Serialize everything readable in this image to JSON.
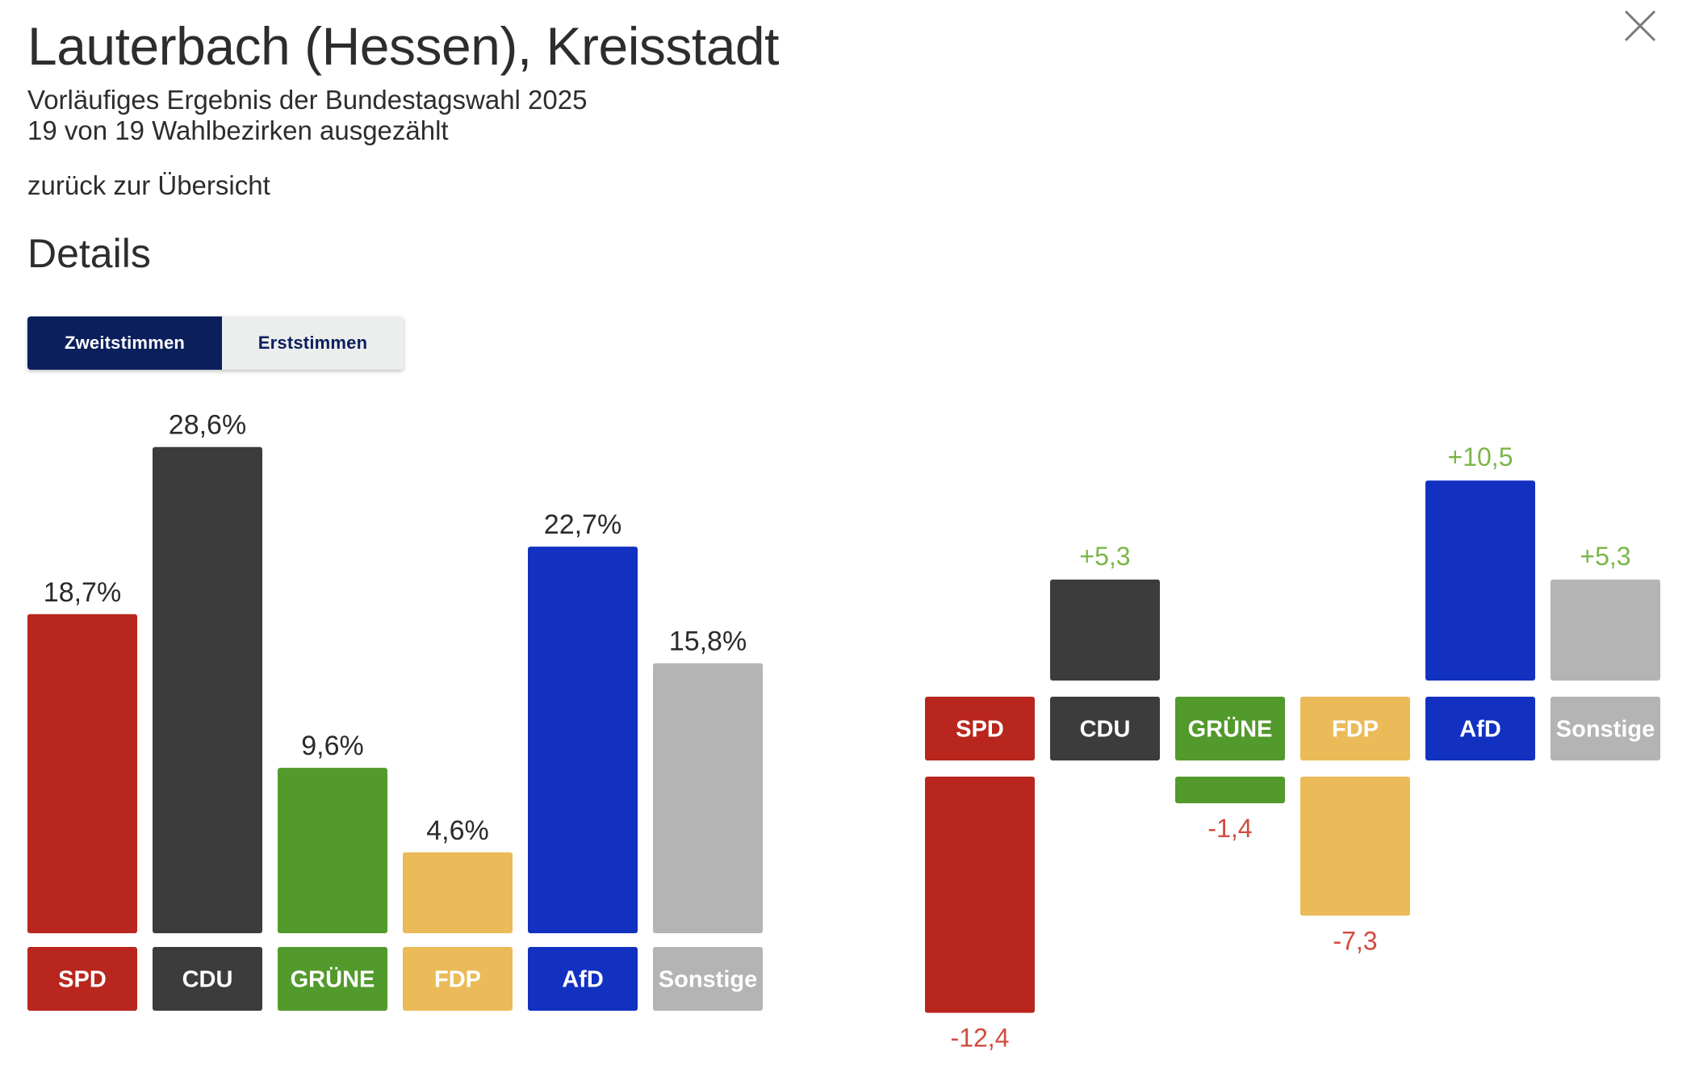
{
  "header": {
    "title": "Lauterbach (Hessen), Kreisstadt",
    "subtitle": "Vorläufiges Ergebnis der Bundestagswahl 2025",
    "counted": "19 von 19 Wahlbezirken ausgezählt",
    "back_link": "zurück zur Übersicht",
    "close_icon": "close-icon"
  },
  "details": {
    "heading": "Details",
    "tabs": [
      {
        "label": "Zweitstimmen",
        "active": true
      },
      {
        "label": "Erststimmen",
        "active": false
      }
    ]
  },
  "colors": {
    "SPD": "#b8261e",
    "CDU": "#3c3c3c",
    "GRÜNE": "#529a2b",
    "FDP": "#eabb58",
    "AfD": "#1231c1",
    "Sonstige": "#b4b4b4",
    "gain": "#7ab648",
    "loss": "#d14b3f",
    "text": "#2b2b2b"
  },
  "chart_data": [
    {
      "type": "bar",
      "categories": [
        "SPD",
        "CDU",
        "GRÜNE",
        "FDP",
        "AfD",
        "Sonstige"
      ],
      "values": [
        18.7,
        28.6,
        9.6,
        4.6,
        22.7,
        15.8
      ],
      "value_labels": [
        "18,7%",
        "28,6%",
        "9,6%",
        "4,6%",
        "22,7%",
        "15,8%"
      ]
    },
    {
      "type": "bar",
      "categories": [
        "SPD",
        "CDU",
        "GRÜNE",
        "FDP",
        "AfD",
        "Sonstige"
      ],
      "values": [
        -12.4,
        5.3,
        -1.4,
        -7.3,
        10.5,
        5.3
      ],
      "value_labels": [
        "-12,4",
        "+5,3",
        "-1,4",
        "-7,3",
        "+10,5",
        "+5,3"
      ]
    }
  ]
}
